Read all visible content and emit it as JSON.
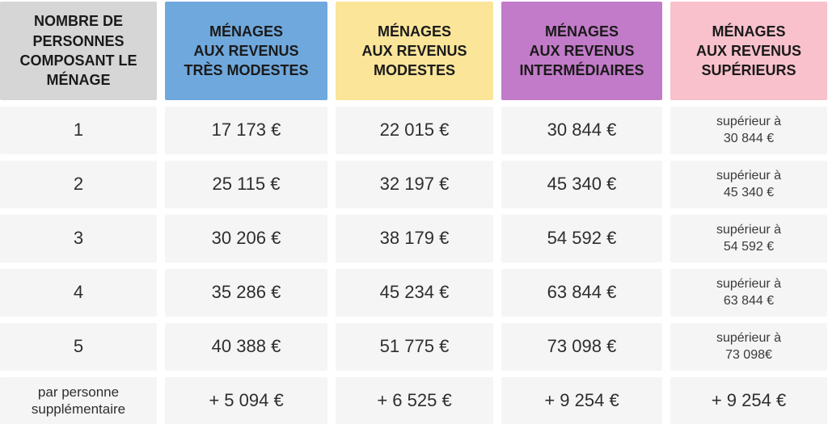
{
  "colors": {
    "header_people": "#d6d6d6",
    "header_tres_modestes": "#6fa8dc",
    "header_modestes": "#fae599",
    "header_intermediaires": "#c27bc8",
    "header_superieurs": "#f8c1cb",
    "cell_bg": "#f5f5f5"
  },
  "table": {
    "headers": [
      {
        "label": "NOMBRE DE\nPERSONNES\nCOMPOSANT LE\nMÉNAGE"
      },
      {
        "label": "MÉNAGES\nAUX REVENUS\nTRÈS MODESTES"
      },
      {
        "label": "MÉNAGES\nAUX REVENUS\nMODESTES"
      },
      {
        "label": "MÉNAGES\nAUX REVENUS\nINTERMÉDIAIRES"
      },
      {
        "label": "MÉNAGES\nAUX REVENUS\nSUPÉRIEURS"
      }
    ],
    "rows": [
      {
        "label": "1",
        "values": [
          "17 173 €",
          "22 015 €",
          "30 844 €",
          "supérieur à\n30 844 €"
        ]
      },
      {
        "label": "2",
        "values": [
          "25 115 €",
          "32 197 €",
          "45 340 €",
          "supérieur à\n45 340 €"
        ]
      },
      {
        "label": "3",
        "values": [
          "30 206 €",
          "38 179 €",
          "54 592 €",
          "supérieur à\n54 592 €"
        ]
      },
      {
        "label": "4",
        "values": [
          "35 286 €",
          "45 234 €",
          "63 844 €",
          "supérieur à\n63 844 €"
        ]
      },
      {
        "label": "5",
        "values": [
          "40 388 €",
          "51 775 €",
          "73 098 €",
          "supérieur à\n73 098€"
        ]
      },
      {
        "label": "par personne\nsupplémentaire",
        "values": [
          "+ 5 094 €",
          "+ 6 525 €",
          "+ 9 254 €",
          "+ 9 254 €"
        ]
      }
    ]
  },
  "chart_data": {
    "type": "table",
    "columns": [
      "NOMBRE DE PERSONNES COMPOSANT LE MÉNAGE",
      "MÉNAGES AUX REVENUS TRÈS MODESTES",
      "MÉNAGES AUX REVENUS MODESTES",
      "MÉNAGES AUX REVENUS INTERMÉDIAIRES",
      "MÉNAGES AUX REVENUS SUPÉRIEURS"
    ],
    "rows": [
      [
        "1",
        "17 173 €",
        "22 015 €",
        "30 844 €",
        "supérieur à 30 844 €"
      ],
      [
        "2",
        "25 115 €",
        "32 197 €",
        "45 340 €",
        "supérieur à 45 340 €"
      ],
      [
        "3",
        "30 206 €",
        "38 179 €",
        "54 592 €",
        "supérieur à 54 592 €"
      ],
      [
        "4",
        "35 286 €",
        "45 234 €",
        "63 844 €",
        "supérieur à 63 844 €"
      ],
      [
        "5",
        "40 388 €",
        "51 775 €",
        "73 098 €",
        "supérieur à 73 098€"
      ],
      [
        "par personne supplémentaire",
        "+ 5 094 €",
        "+ 6 525 €",
        "+ 9 254 €",
        "+ 9 254 €"
      ]
    ],
    "values_numeric": {
      "tres_modestes": [
        17173,
        25115,
        30206,
        35286,
        40388,
        5094
      ],
      "modestes": [
        22015,
        32197,
        38179,
        45234,
        51775,
        6525
      ],
      "intermediaires": [
        30844,
        45340,
        54592,
        63844,
        73098,
        9254
      ],
      "superieurs_above": [
        30844,
        45340,
        54592,
        63844,
        73098,
        9254
      ]
    }
  }
}
